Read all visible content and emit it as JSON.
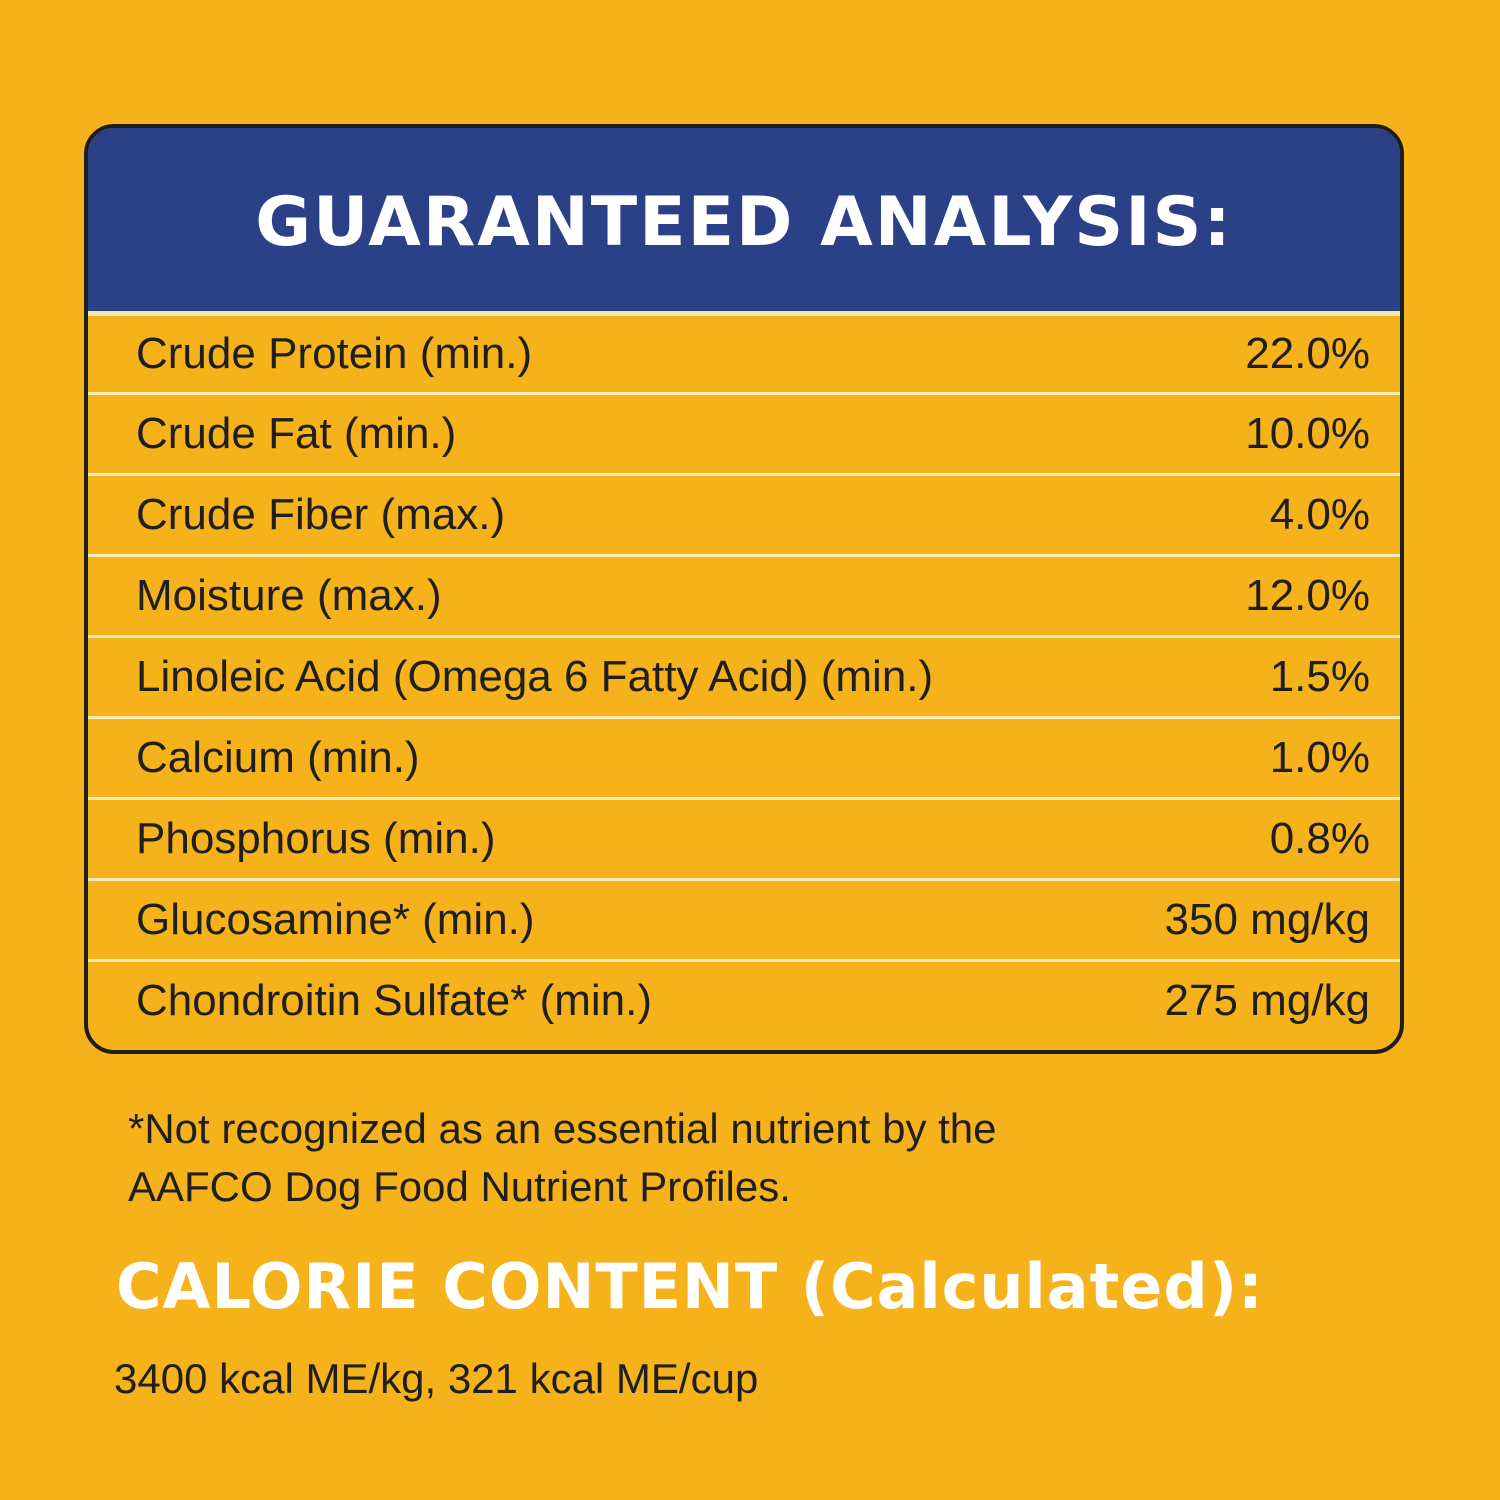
{
  "analysis": {
    "title": "GUARANTEED ANALYSIS:",
    "rows": [
      {
        "label": "Crude Protein (min.)",
        "value": "22.0%"
      },
      {
        "label": "Crude Fat (min.)",
        "value": "10.0%"
      },
      {
        "label": "Crude Fiber (max.)",
        "value": "4.0%"
      },
      {
        "label": "Moisture (max.)",
        "value": "12.0%"
      },
      {
        "label": "Linoleic Acid (Omega 6 Fatty Acid) (min.)",
        "value": "1.5%"
      },
      {
        "label": "Calcium (min.)",
        "value": "1.0%"
      },
      {
        "label": "Phosphorus (min.)",
        "value": "0.8%"
      },
      {
        "label": "Glucosamine* (min.)",
        "value": "350 mg/kg"
      },
      {
        "label": "Chondroitin Sulfate* (min.)",
        "value": "275 mg/kg"
      }
    ]
  },
  "footnote": {
    "line1": "*Not recognized as an essential nutrient by the",
    "line2": "AAFCO Dog Food Nutrient Profiles."
  },
  "calorie": {
    "title": "CALORIE CONTENT (Calculated):",
    "text": "3400 kcal ME/kg, 321 kcal ME/cup"
  },
  "colors": {
    "background": "#f6b21a",
    "header": "#2a4188",
    "divider": "#fde9b2"
  }
}
